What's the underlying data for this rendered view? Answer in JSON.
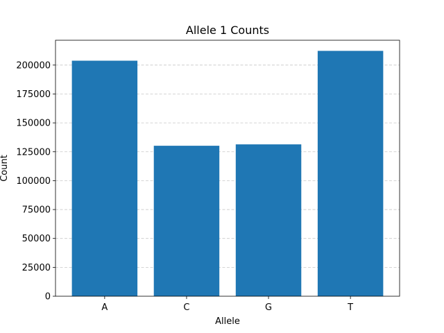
{
  "chart_data": {
    "type": "bar",
    "title": "Allele 1 Counts",
    "xlabel": "Allele",
    "ylabel": "Count",
    "categories": [
      "A",
      "C",
      "G",
      "T"
    ],
    "values": [
      203800,
      130200,
      131400,
      212300
    ],
    "ylim": [
      0,
      221500
    ],
    "yticks": [
      0,
      25000,
      50000,
      75000,
      100000,
      125000,
      150000,
      175000,
      200000
    ],
    "ytick_labels": [
      "0",
      "25000",
      "50000",
      "75000",
      "100000",
      "125000",
      "150000",
      "175000",
      "200000"
    ],
    "bar_color": "#1f77b4",
    "grid": {
      "axis": "y",
      "style": "dashed",
      "color": "#b0b0b0"
    }
  }
}
